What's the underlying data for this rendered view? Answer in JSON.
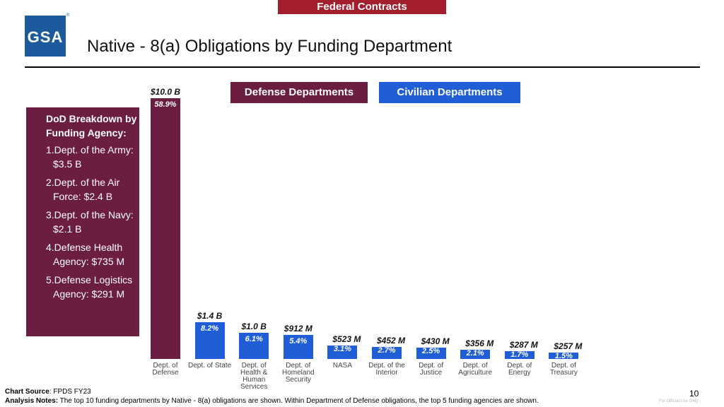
{
  "banner": "Federal Contracts",
  "logo": "GSA",
  "title": "Native - 8(a) Obligations by Funding Department",
  "legend": {
    "defense": "Defense Departments",
    "civilian": "Civilian Departments"
  },
  "dod_box": {
    "heading": "DoD Breakdown by Funding Agency:",
    "items": [
      "1.Dept. of the Army: $3.5 B",
      "2.Dept. of the Air Force: $2.4 B",
      "3.Dept. of the Navy: $2.1 B",
      "4.Defense Health Agency: $735 M",
      "5.Defense Logistics Agency: $291 M"
    ]
  },
  "chart_data": {
    "type": "bar",
    "categories": [
      "Dept. of Defense",
      "Dept. of State",
      "Dept. of Health & Human Services",
      "Dept. of Homeland Security",
      "NASA",
      "Dept. of the Interior",
      "Dept. of Justice",
      "Dept. of Agriculture",
      "Dept. of Energy",
      "Dept. of Treasury"
    ],
    "values_billion": [
      10.0,
      1.4,
      1.0,
      0.912,
      0.523,
      0.452,
      0.43,
      0.356,
      0.287,
      0.257
    ],
    "value_labels": [
      "$10.0 B",
      "$1.4 B",
      "$1.0 B",
      "$912 M",
      "$523 M",
      "$452 M",
      "$430 M",
      "$356 M",
      "$287 M",
      "$257 M"
    ],
    "percent_labels": [
      "58.9%",
      "8.2%",
      "6.1%",
      "5.4%",
      "3.1%",
      "2.7%",
      "2.5%",
      "2.1%",
      "1.7%",
      "1.5%"
    ],
    "groups": [
      "defense",
      "civilian",
      "civilian",
      "civilian",
      "civilian",
      "civilian",
      "civilian",
      "civilian",
      "civilian",
      "civilian"
    ],
    "colors": {
      "defense": "#6b1d42",
      "civilian": "#1f5ed6"
    },
    "ylim": [
      0,
      10.0
    ],
    "grid": false
  },
  "footer": {
    "source_label": "Chart Source",
    "source": ": FPDS FY23",
    "notes_label": "Analysis Notes:",
    "notes": " The top 10 funding departments by Native - 8(a) obligations are shown. Within Department of Defense obligations, the top 5 funding agencies are shown.",
    "page": "10",
    "marking": "For Official Use Only"
  }
}
